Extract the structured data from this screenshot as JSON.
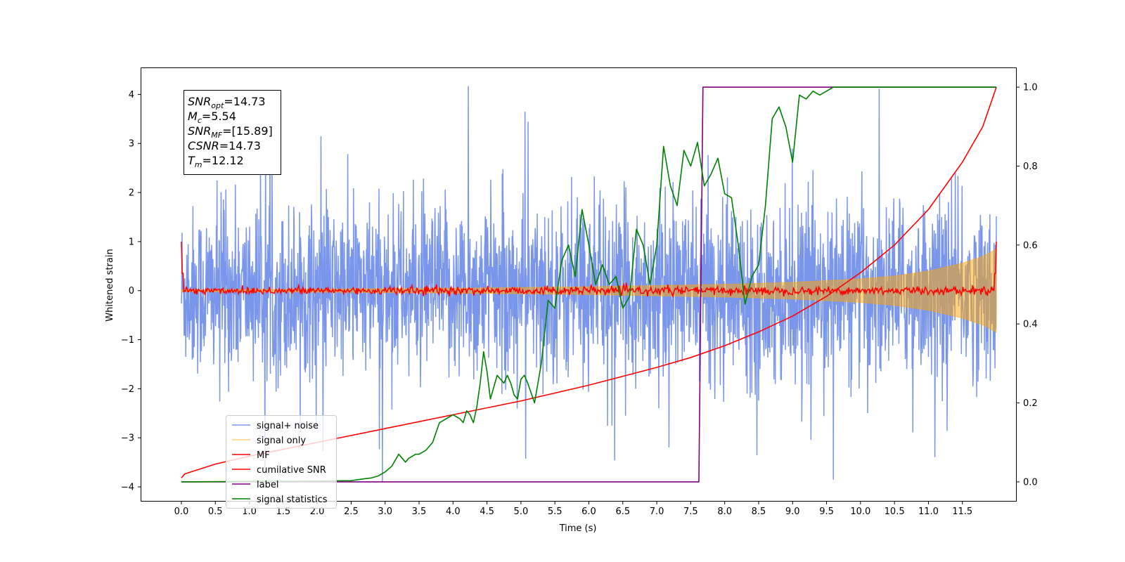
{
  "chart_data": {
    "type": "line",
    "xlabel": "Time (s)",
    "ylabel": "Whitened strain",
    "xlim": [
      -0.6,
      12.3
    ],
    "ylim": [
      -4.3,
      4.55
    ],
    "ylim_right": [
      -0.05,
      1.05
    ],
    "x_ticks": [
      0.0,
      0.5,
      1.0,
      1.5,
      2.0,
      2.5,
      3.0,
      3.5,
      4.0,
      4.5,
      5.0,
      5.5,
      6.0,
      6.5,
      7.0,
      7.5,
      8.0,
      8.5,
      9.0,
      9.5,
      10.0,
      10.5,
      11.0,
      11.5
    ],
    "x_tick_labels": [
      "0.0",
      "0.5",
      "1.0",
      "1.5",
      "2.0",
      "2.5",
      "3.0",
      "3.5",
      "4.0",
      "4.5",
      "5.0",
      "5.5",
      "6.0",
      "6.5",
      "7.0",
      "7.5",
      "8.0",
      "8.5",
      "9.0",
      "9.5",
      "10.0",
      "10.5",
      "11.0",
      "11.5"
    ],
    "y_ticks": [
      -4,
      -3,
      -2,
      -1,
      0,
      1,
      2,
      3,
      4
    ],
    "y_tick_labels": [
      "−4",
      "−3",
      "−2",
      "−1",
      "0",
      "1",
      "2",
      "3",
      "4"
    ],
    "y2_ticks": [
      0.0,
      0.2,
      0.4,
      0.6,
      0.8,
      1.0
    ],
    "y2_tick_labels": [
      "0.0",
      "0.2",
      "0.4",
      "0.6",
      "0.8",
      "1.0"
    ],
    "grid": false,
    "legend_position": "lower-left",
    "info_box": {
      "position": "upper-left",
      "lines": [
        {
          "sym": "SNR",
          "sub": "opt",
          "value": "=14.73"
        },
        {
          "sym": "M",
          "sub": "c",
          "value": "=5.54"
        },
        {
          "sym": "SNR",
          "sub": "MF",
          "value": "=[15.89]"
        },
        {
          "sym": "CSNR",
          "sub": "",
          "value": "=14.73"
        },
        {
          "sym": "T",
          "sub": "m",
          "value": "=12.12"
        }
      ]
    },
    "series": [
      {
        "name": "signal+ noise",
        "color": "#4169e1",
        "axis": "left",
        "kind": "noise_band",
        "x_range": [
          0.0,
          12.0
        ],
        "typical_envelope": [
          -1.6,
          1.6
        ],
        "peak_max": 4.17,
        "peak_min": -3.85
      },
      {
        "name": "signal only",
        "color": "#ffa500",
        "axis": "left",
        "kind": "envelope",
        "x": [
          0.0,
          2.0,
          4.0,
          6.0,
          8.0,
          9.0,
          10.0,
          10.5,
          11.0,
          11.5,
          11.8,
          12.0
        ],
        "amplitude": [
          0.02,
          0.03,
          0.05,
          0.08,
          0.13,
          0.17,
          0.24,
          0.3,
          0.4,
          0.56,
          0.7,
          0.85
        ]
      },
      {
        "name": "MF",
        "color": "#ff0000",
        "axis": "left",
        "kind": "noisy_line",
        "x_range": [
          0.0,
          12.0
        ],
        "baseline": 0.0,
        "spread": 0.07,
        "edge_value": 1.0
      },
      {
        "name": "cumilative SNR",
        "color": "#ff0000",
        "axis": "right",
        "x": [
          0.0,
          0.05,
          0.5,
          1.0,
          2.0,
          3.0,
          4.0,
          5.0,
          6.0,
          7.0,
          7.5,
          8.0,
          8.5,
          9.0,
          9.5,
          10.0,
          10.5,
          11.0,
          11.5,
          11.8,
          12.0
        ],
        "values": [
          0.01,
          0.02,
          0.045,
          0.065,
          0.1,
          0.135,
          0.17,
          0.205,
          0.245,
          0.29,
          0.315,
          0.345,
          0.38,
          0.42,
          0.47,
          0.53,
          0.6,
          0.69,
          0.81,
          0.9,
          1.0
        ]
      },
      {
        "name": "label",
        "color": "#800080",
        "axis": "right",
        "x": [
          0.0,
          7.62,
          7.68,
          12.0
        ],
        "values": [
          0.0,
          0.0,
          1.0,
          1.0
        ]
      },
      {
        "name": "signal statistics",
        "color": "#008000",
        "axis": "right",
        "x": [
          0.0,
          1.0,
          2.0,
          2.5,
          2.7,
          2.8,
          2.9,
          3.0,
          3.1,
          3.2,
          3.3,
          3.35,
          3.4,
          3.45,
          3.5,
          3.6,
          3.7,
          3.8,
          3.9,
          4.0,
          4.1,
          4.15,
          4.2,
          4.25,
          4.3,
          4.35,
          4.4,
          4.45,
          4.5,
          4.55,
          4.6,
          4.65,
          4.7,
          4.75,
          4.8,
          4.85,
          4.9,
          4.95,
          5.0,
          5.05,
          5.1,
          5.2,
          5.3,
          5.4,
          5.5,
          5.55,
          5.6,
          5.7,
          5.8,
          5.9,
          6.0,
          6.1,
          6.2,
          6.3,
          6.4,
          6.5,
          6.6,
          6.7,
          6.8,
          6.9,
          7.0,
          7.1,
          7.2,
          7.3,
          7.4,
          7.5,
          7.6,
          7.7,
          7.8,
          7.9,
          8.0,
          8.1,
          8.2,
          8.3,
          8.4,
          8.5,
          8.6,
          8.7,
          8.8,
          8.9,
          9.0,
          9.1,
          9.2,
          9.3,
          9.4,
          9.5,
          9.6,
          10.0,
          10.5,
          11.0,
          11.5,
          12.0
        ],
        "values": [
          0.0,
          0.001,
          0.002,
          0.003,
          0.008,
          0.01,
          0.015,
          0.025,
          0.04,
          0.07,
          0.05,
          0.06,
          0.065,
          0.07,
          0.07,
          0.08,
          0.1,
          0.15,
          0.16,
          0.17,
          0.16,
          0.15,
          0.18,
          0.17,
          0.15,
          0.19,
          0.25,
          0.33,
          0.28,
          0.21,
          0.24,
          0.27,
          0.26,
          0.25,
          0.27,
          0.25,
          0.22,
          0.21,
          0.26,
          0.27,
          0.25,
          0.2,
          0.3,
          0.46,
          0.44,
          0.5,
          0.56,
          0.6,
          0.52,
          0.69,
          0.6,
          0.5,
          0.55,
          0.5,
          0.52,
          0.44,
          0.47,
          0.64,
          0.6,
          0.5,
          0.6,
          0.85,
          0.75,
          0.7,
          0.84,
          0.8,
          0.86,
          0.75,
          0.78,
          0.82,
          0.73,
          0.72,
          0.6,
          0.45,
          0.52,
          0.55,
          0.7,
          0.92,
          0.95,
          0.9,
          0.81,
          0.98,
          0.97,
          0.99,
          0.98,
          0.99,
          1.0,
          1.0,
          1.0,
          1.0,
          1.0,
          1.0
        ]
      }
    ]
  }
}
